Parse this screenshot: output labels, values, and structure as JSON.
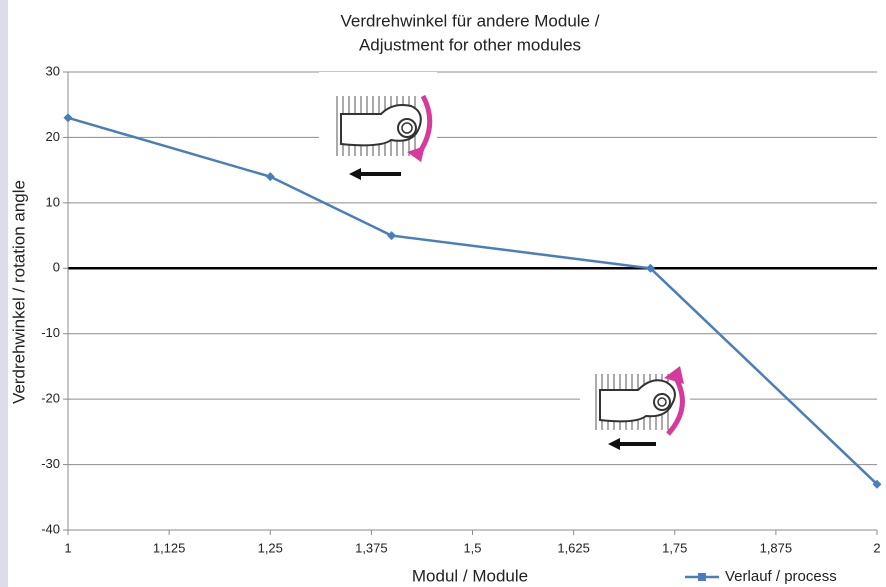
{
  "chart_data": {
    "type": "line",
    "title": [
      "Verdrehwinkel für andere Module /",
      "Adjustment for other modules"
    ],
    "x_label": "Modul / Module",
    "y_label": "Verdrehwinkel / rotation angle",
    "x": [
      1,
      1.25,
      1.4,
      1.72,
      2
    ],
    "series": [
      {
        "name": "Verlauf / process",
        "color": "#4a7ebb",
        "values": [
          23,
          14,
          5,
          0,
          -33
        ]
      }
    ],
    "xlim": [
      1,
      2
    ],
    "xticks": [
      1,
      {
        "value": 1.125,
        "label": "1,125"
      },
      {
        "value": 1.25,
        "label": "1,25"
      },
      {
        "value": 1.375,
        "label": "1,375"
      },
      {
        "value": 1.5,
        "label": "1,5"
      },
      {
        "value": 1.625,
        "label": "1,625"
      },
      {
        "value": 1.75,
        "label": "1,75"
      },
      {
        "value": 1.875,
        "label": "1,875"
      },
      2
    ],
    "ylim": [
      -40,
      30
    ],
    "yticks": [
      30,
      20,
      10,
      0,
      -10,
      -20,
      -30,
      -40
    ],
    "grid": true,
    "legend": "bottom-right"
  }
}
